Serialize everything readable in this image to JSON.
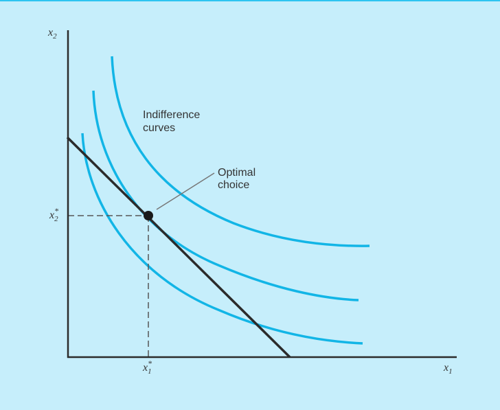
{
  "axes": {
    "x_label": "x",
    "x_sub": "1",
    "y_label": "x",
    "y_sub": "2"
  },
  "optimum": {
    "x_label": "x",
    "x_sup": "*",
    "x_sub": "1",
    "y_label": "x",
    "y_sup": "*",
    "y_sub": "2"
  },
  "annotations": {
    "indifference_line1": "Indifference",
    "indifference_line2": "curves",
    "optimal_line1": "Optimal",
    "optimal_line2": "choice"
  },
  "colors": {
    "background": "#c6eefb",
    "curves": "#12b5e6",
    "budget_line": "#2b2b2b",
    "axes": "#2b2b2b",
    "guides": "#555555"
  }
}
